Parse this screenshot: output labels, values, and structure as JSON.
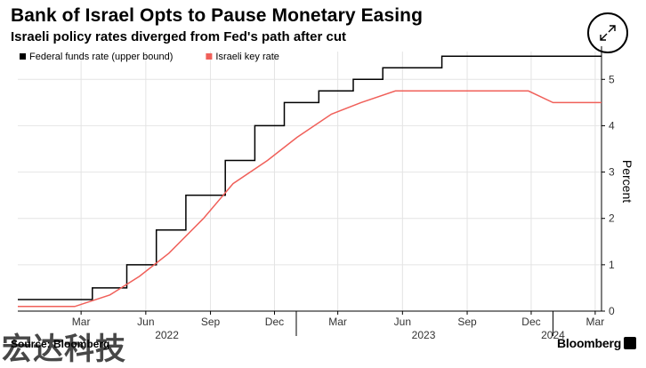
{
  "header": {
    "title": "Bank of Israel Opts to Pause Monetary Easing",
    "subtitle": "Israeli policy rates diverged from Fed's path after cut"
  },
  "footer": {
    "source": "Source: Bloomberg",
    "brand": "Bloomberg",
    "watermark": "宏达科技"
  },
  "icons": {
    "expand": "expand-arrows-icon",
    "brand_badge": "bloomberg-badge-icon"
  },
  "chart_data": {
    "type": "line",
    "title": "Bank of Israel Opts to Pause Monetary Easing",
    "subtitle": "Israeli policy rates diverged from Fed's path after cut",
    "ylabel": "Percent",
    "ylim": [
      0,
      5.6
    ],
    "yticks": [
      0,
      1,
      2,
      3,
      4,
      5
    ],
    "xlim": [
      "2021-12-01",
      "2024-03-10"
    ],
    "x_month_ticks": [
      {
        "date": "2022-03-01",
        "label": "Mar"
      },
      {
        "date": "2022-06-01",
        "label": "Jun"
      },
      {
        "date": "2022-09-01",
        "label": "Sep"
      },
      {
        "date": "2022-12-01",
        "label": "Dec"
      },
      {
        "date": "2023-03-01",
        "label": "Mar"
      },
      {
        "date": "2023-06-01",
        "label": "Jun"
      },
      {
        "date": "2023-09-01",
        "label": "Sep"
      },
      {
        "date": "2023-12-01",
        "label": "Dec"
      },
      {
        "date": "2024-03-01",
        "label": "Mar"
      }
    ],
    "x_year_ticks": [
      {
        "date": "2022-07-01",
        "label": "2022"
      },
      {
        "date": "2023-07-01",
        "label": "2023"
      },
      {
        "date": "2024-01-01",
        "label": "2024"
      }
    ],
    "year_boundaries": [
      "2023-01-01",
      "2024-01-01"
    ],
    "grid": true,
    "legend_position": "top-left",
    "series": [
      {
        "name": "Federal funds rate (upper bound)",
        "color": "#000000",
        "step": true,
        "points": [
          [
            "2021-12-01",
            0.25
          ],
          [
            "2022-03-17",
            0.5
          ],
          [
            "2022-05-05",
            1.0
          ],
          [
            "2022-06-16",
            1.75
          ],
          [
            "2022-07-28",
            2.5
          ],
          [
            "2022-09-22",
            3.25
          ],
          [
            "2022-11-03",
            4.0
          ],
          [
            "2022-12-15",
            4.5
          ],
          [
            "2023-02-02",
            4.75
          ],
          [
            "2023-03-23",
            5.0
          ],
          [
            "2023-05-04",
            5.25
          ],
          [
            "2023-07-27",
            5.5
          ],
          [
            "2024-03-10",
            5.5
          ]
        ]
      },
      {
        "name": "Israeli key rate",
        "color": "#f0605a",
        "step": false,
        "points": [
          [
            "2021-12-01",
            0.1
          ],
          [
            "2022-02-20",
            0.1
          ],
          [
            "2022-04-11",
            0.35
          ],
          [
            "2022-05-23",
            0.75
          ],
          [
            "2022-07-04",
            1.25
          ],
          [
            "2022-08-22",
            2.0
          ],
          [
            "2022-10-03",
            2.75
          ],
          [
            "2022-11-21",
            3.25
          ],
          [
            "2023-01-02",
            3.75
          ],
          [
            "2023-02-20",
            4.25
          ],
          [
            "2023-04-03",
            4.5
          ],
          [
            "2023-05-22",
            4.75
          ],
          [
            "2023-11-27",
            4.75
          ],
          [
            "2024-01-01",
            4.5
          ],
          [
            "2024-03-10",
            4.5
          ]
        ]
      }
    ]
  }
}
